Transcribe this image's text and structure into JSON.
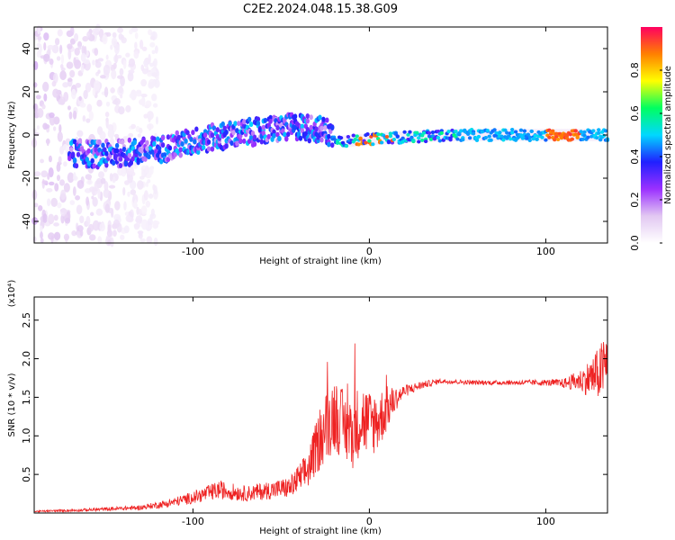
{
  "title": "C2E2.2024.048.15.38.G09",
  "chart_data": [
    {
      "type": "heatmap",
      "xlabel": "Height of straight line (km)",
      "ylabel": "Frequency (Hz)",
      "xlim": [
        -190,
        135
      ],
      "ylim": [
        -50,
        50
      ],
      "xticks": [
        -100,
        0,
        100
      ],
      "yticks": [
        -40,
        -20,
        0,
        20,
        40
      ],
      "colorbar": {
        "label": "Normalized spectral amplitude",
        "range": [
          0.0,
          1.0
        ],
        "ticks": [
          "0.0",
          "0.2",
          "0.4",
          "0.6",
          "0.8"
        ],
        "colors": [
          "#ffffff",
          "#e2c8f2",
          "#9b30ff",
          "#2020ff",
          "#00d8ff",
          "#00ff60",
          "#ffff00",
          "#ff8000",
          "#ff0060"
        ]
      },
      "ridge": {
        "description_points": [
          {
            "x": -180,
            "f": -8
          },
          {
            "x": -150,
            "f": -9
          },
          {
            "x": -120,
            "f": -7
          },
          {
            "x": -100,
            "f": -3
          },
          {
            "x": -80,
            "f": 0
          },
          {
            "x": -60,
            "f": 2
          },
          {
            "x": -40,
            "f": 4
          },
          {
            "x": -25,
            "f": 2
          },
          {
            "x": -15,
            "f": -3
          },
          {
            "x": 0,
            "f": -2
          },
          {
            "x": 20,
            "f": -1
          },
          {
            "x": 50,
            "f": 0
          },
          {
            "x": 100,
            "f": 0
          },
          {
            "x": 135,
            "f": 0
          }
        ]
      }
    },
    {
      "type": "line",
      "xlabel": "Height of straight line (km)",
      "ylabel": "SNR (10 * v/v)",
      "yscale_note": "(x10⁴)",
      "xlim": [
        -190,
        135
      ],
      "ylim": [
        0,
        2.8
      ],
      "xticks": [
        -100,
        0,
        100
      ],
      "yticks": [
        "0.5",
        "1.0",
        "1.5",
        "2.0",
        "2.5"
      ],
      "series": [
        {
          "color": "#ee2222",
          "envelope_x": [
            -190,
            -160,
            -130,
            -115,
            -100,
            -85,
            -70,
            -55,
            -45,
            -35,
            -30,
            -25,
            -20,
            -15,
            -10,
            -5,
            0,
            5,
            10,
            15,
            20,
            30,
            40,
            60,
            80,
            100,
            110,
            120,
            125,
            130,
            135
          ],
          "envelope_y": [
            0.02,
            0.04,
            0.07,
            0.12,
            0.2,
            0.3,
            0.25,
            0.3,
            0.33,
            0.55,
            0.85,
            1.1,
            1.3,
            1.15,
            1.0,
            1.25,
            1.15,
            1.2,
            1.35,
            1.48,
            1.58,
            1.66,
            1.71,
            1.69,
            1.69,
            1.69,
            1.68,
            1.72,
            1.75,
            1.8,
            1.95
          ],
          "noise_amp": [
            0.01,
            0.02,
            0.03,
            0.05,
            0.08,
            0.12,
            0.1,
            0.12,
            0.14,
            0.25,
            0.35,
            0.45,
            0.5,
            0.45,
            0.45,
            0.5,
            0.45,
            0.4,
            0.3,
            0.15,
            0.08,
            0.05,
            0.03,
            0.03,
            0.03,
            0.04,
            0.06,
            0.15,
            0.25,
            0.35,
            0.45
          ]
        }
      ]
    }
  ]
}
